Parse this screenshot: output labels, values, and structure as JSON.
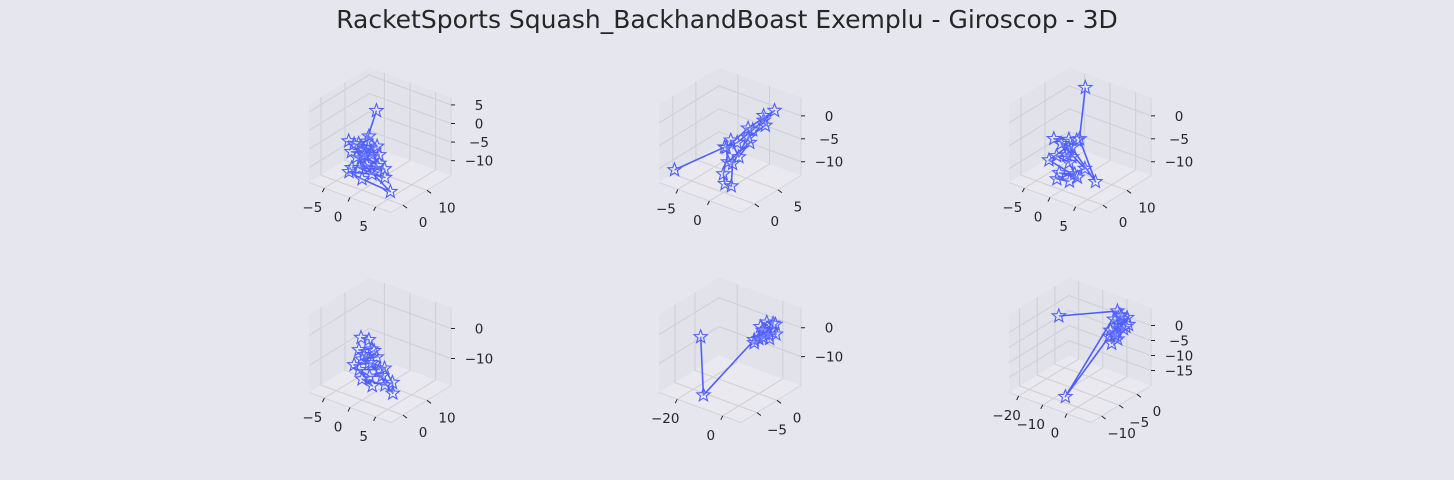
{
  "title": "RacketSports Squash_BackhandBoast Exemplu - Giroscop - 3D",
  "colors": {
    "line": "#4f5fff",
    "pane_side": "#e2e2ea",
    "pane_floor": "#e9e9ef",
    "grid": "#cfcfd6",
    "text": "#262626"
  },
  "chart_data": [
    {
      "type": "line3d",
      "marker": "star",
      "xlim": [
        -8,
        8
      ],
      "ylim": [
        -5,
        20
      ],
      "zlim": [
        -14,
        7
      ],
      "xticks": [
        -5,
        0,
        5
      ],
      "yticks": [
        0,
        10
      ],
      "zticks": [
        5,
        0,
        -5,
        -10
      ],
      "xtick_labels": [
        "−5",
        "0",
        "5"
      ],
      "ytick_labels": [
        "0",
        "10"
      ],
      "ztick_labels": [
        "5",
        "0",
        "−5",
        "−10"
      ],
      "points": [
        [
          0,
          6,
          5
        ],
        [
          -1,
          4,
          -3
        ],
        [
          -3,
          5,
          -5
        ],
        [
          -1,
          3,
          -5
        ],
        [
          1,
          3,
          -4
        ],
        [
          -3,
          2,
          -6
        ],
        [
          0,
          4,
          -6
        ],
        [
          2,
          3,
          -7
        ],
        [
          -2,
          4,
          -8
        ],
        [
          0,
          2,
          -8
        ],
        [
          3,
          3,
          -8
        ],
        [
          -1,
          1,
          -9
        ],
        [
          4,
          1,
          -9
        ],
        [
          1,
          2,
          -10
        ],
        [
          -3,
          1,
          -11
        ],
        [
          0,
          0,
          -11
        ],
        [
          6,
          -1,
          -11
        ],
        [
          -2,
          2,
          -7
        ],
        [
          1,
          5,
          -6
        ],
        [
          -4,
          3,
          -4
        ],
        [
          -2,
          1,
          -3
        ],
        [
          2,
          2,
          -2
        ],
        [
          -1,
          5,
          -2
        ],
        [
          0,
          1,
          -5
        ],
        [
          3,
          0,
          -6
        ],
        [
          -2,
          0,
          -9
        ]
      ]
    },
    {
      "type": "line3d",
      "marker": "star",
      "xlim": [
        -8,
        5
      ],
      "ylim": [
        -3,
        10
      ],
      "zlim": [
        -13,
        4
      ],
      "xticks": [
        -5,
        0
      ],
      "yticks": [
        0,
        5
      ],
      "zticks": [
        0,
        -5,
        -10
      ],
      "xtick_labels": [
        "−5",
        "0"
      ],
      "ytick_labels": [
        "0",
        "5"
      ],
      "ztick_labels": [
        "0",
        "−5",
        "−10"
      ],
      "points": [
        [
          -7,
          -1,
          -11
        ],
        [
          -2,
          3,
          -6
        ],
        [
          0,
          3,
          -4
        ],
        [
          1,
          5,
          -2
        ],
        [
          2,
          6,
          0
        ],
        [
          3,
          7,
          2
        ],
        [
          1,
          4,
          -1
        ],
        [
          -1,
          2,
          -5
        ],
        [
          0,
          1,
          -7
        ],
        [
          2,
          3,
          -3
        ],
        [
          1,
          2,
          -6
        ],
        [
          -1,
          3,
          -4
        ],
        [
          0,
          0,
          -9
        ],
        [
          1,
          -1,
          -10
        ],
        [
          2,
          -1,
          -10
        ],
        [
          0,
          2,
          -8
        ],
        [
          1,
          4,
          -3
        ],
        [
          3,
          5,
          0
        ],
        [
          2,
          6,
          1
        ]
      ]
    },
    {
      "type": "line3d",
      "marker": "star",
      "xlim": [
        -8,
        8
      ],
      "ylim": [
        -5,
        20
      ],
      "zlim": [
        -13,
        4
      ],
      "xticks": [
        -5,
        0,
        5
      ],
      "yticks": [
        0,
        10
      ],
      "zticks": [
        0,
        -5,
        -10
      ],
      "xtick_labels": [
        "−5",
        "0",
        "5"
      ],
      "ytick_labels": [
        "0",
        "10"
      ],
      "ztick_labels": [
        "0",
        "−5",
        "−10"
      ],
      "points": [
        [
          -2,
          14,
          4
        ],
        [
          2,
          3,
          -2
        ],
        [
          7,
          -1,
          -8
        ],
        [
          0,
          4,
          -5
        ],
        [
          -3,
          3,
          -4
        ],
        [
          -1,
          5,
          -4
        ],
        [
          1,
          2,
          -6
        ],
        [
          -2,
          2,
          -7
        ],
        [
          0,
          3,
          -8
        ],
        [
          2,
          1,
          -9
        ],
        [
          -1,
          1,
          -10
        ],
        [
          3,
          0,
          -9
        ],
        [
          -3,
          1,
          -8
        ],
        [
          1,
          4,
          -3
        ],
        [
          0,
          2,
          -6
        ],
        [
          -2,
          4,
          -5
        ],
        [
          4,
          1,
          -7
        ],
        [
          -1,
          0,
          -11
        ],
        [
          1,
          1,
          -11
        ]
      ]
    },
    {
      "type": "line3d",
      "marker": "star",
      "xlim": [
        -8,
        8
      ],
      "ylim": [
        -5,
        20
      ],
      "zlim": [
        -19,
        7
      ],
      "xticks": [
        -5,
        0,
        5
      ],
      "yticks": [
        0,
        10
      ],
      "zticks": [
        0,
        -10
      ],
      "xtick_labels": [
        "−5",
        "0",
        "5"
      ],
      "ytick_labels": [
        "0",
        "10"
      ],
      "ztick_labels": [
        "0",
        "−10"
      ],
      "points": [
        [
          -3,
          6,
          -3
        ],
        [
          -1,
          5,
          -2
        ],
        [
          0,
          4,
          -4
        ],
        [
          -2,
          3,
          -5
        ],
        [
          1,
          4,
          -6
        ],
        [
          -1,
          2,
          -7
        ],
        [
          0,
          3,
          -8
        ],
        [
          2,
          3,
          -9
        ],
        [
          -1,
          1,
          -10
        ],
        [
          1,
          1,
          -11
        ],
        [
          3,
          2,
          -10
        ],
        [
          4,
          1,
          -12
        ],
        [
          0,
          0,
          -12
        ],
        [
          2,
          0,
          -13
        ],
        [
          -2,
          1,
          -9
        ],
        [
          1,
          2,
          -7
        ],
        [
          3,
          3,
          -8
        ],
        [
          5,
          2,
          -11
        ],
        [
          6,
          0,
          -13
        ],
        [
          -1,
          3,
          -6
        ],
        [
          0,
          5,
          -5
        ]
      ]
    },
    {
      "type": "line3d",
      "marker": "star",
      "xlim": [
        -28,
        8
      ],
      "ylim": [
        -9,
        6
      ],
      "zlim": [
        -20,
        7
      ],
      "xticks": [
        -20,
        0
      ],
      "yticks": [
        -5,
        0
      ],
      "zticks": [
        0,
        -10
      ],
      "xtick_labels": [
        "−20",
        "0"
      ],
      "ytick_labels": [
        "−5",
        "0"
      ],
      "ztick_labels": [
        "0",
        "−10"
      ],
      "points": [
        [
          -22,
          -2,
          -5
        ],
        [
          -12,
          -7,
          -18
        ],
        [
          -2,
          0,
          -2
        ],
        [
          0,
          2,
          3
        ],
        [
          -1,
          1,
          2
        ],
        [
          1,
          1,
          0
        ],
        [
          2,
          2,
          1
        ],
        [
          0,
          0,
          -1
        ],
        [
          -1,
          2,
          0
        ],
        [
          1,
          3,
          2
        ],
        [
          3,
          1,
          -1
        ],
        [
          0,
          1,
          1
        ],
        [
          -2,
          0,
          -3
        ],
        [
          2,
          0,
          0
        ],
        [
          1,
          2,
          -1
        ],
        [
          4,
          2,
          0
        ],
        [
          2,
          3,
          2
        ]
      ]
    },
    {
      "type": "line3d",
      "marker": "star",
      "xlim": [
        -24,
        10
      ],
      "ylim": [
        -13,
        4
      ],
      "zlim": [
        -20,
        6
      ],
      "xticks": [
        -20,
        -10,
        0
      ],
      "yticks": [
        -10,
        -5,
        0
      ],
      "zticks": [
        0,
        -5,
        -10,
        -15
      ],
      "xtick_labels": [
        "−20",
        "−10",
        "0"
      ],
      "ytick_labels": [
        "−10",
        "−5",
        "0"
      ],
      "ztick_labels": [
        "0",
        "−5",
        "−10",
        "−15"
      ],
      "points": [
        [
          -18,
          -3,
          0
        ],
        [
          -1,
          2,
          3
        ],
        [
          -5,
          -10,
          -18
        ],
        [
          0,
          -1,
          -3
        ],
        [
          1,
          1,
          0
        ],
        [
          3,
          2,
          2
        ],
        [
          2,
          0,
          -2
        ],
        [
          0,
          1,
          -1
        ],
        [
          1,
          2,
          1
        ],
        [
          4,
          1,
          0
        ],
        [
          2,
          0,
          -4
        ],
        [
          -1,
          0,
          -2
        ],
        [
          1,
          -1,
          -5
        ],
        [
          3,
          1,
          -1
        ],
        [
          0,
          2,
          2
        ],
        [
          5,
          1,
          1
        ],
        [
          2,
          1,
          3
        ],
        [
          1,
          0,
          -3
        ],
        [
          -1,
          1,
          1
        ]
      ]
    }
  ]
}
